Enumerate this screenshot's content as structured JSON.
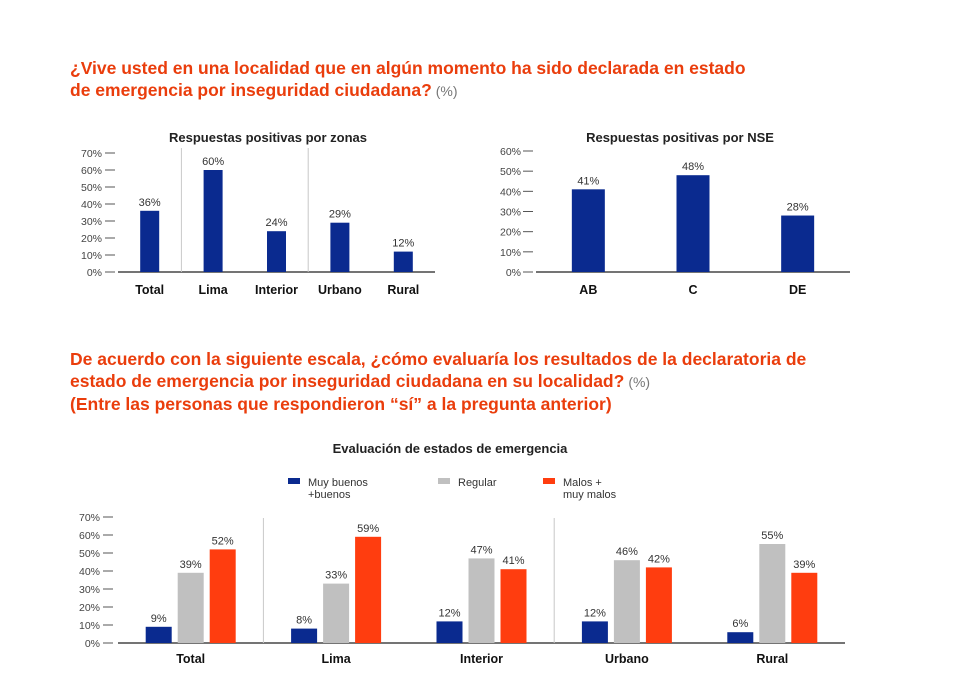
{
  "questions": {
    "q1": {
      "line1": "¿Vive usted en una localidad que en algún momento ha sido declarada en estado",
      "line2": "de emergencia por inseguridad ciudadana?",
      "pct": "(%)"
    },
    "q2": {
      "line1": "De acuerdo con la siguiente escala, ¿cómo evaluaría los resultados de la declaratoria de",
      "line2": "estado de emergencia por inseguridad ciudadana en su localidad?",
      "pct": "(%)",
      "line3": "(Entre las personas que respondieron “sí” a la pregunta anterior)"
    }
  },
  "colors": {
    "navy": "#0a2a8f",
    "gray": "#c0c0c0",
    "orange": "#ff3d0f",
    "accent_text": "#ea3d0c"
  },
  "chart_data": [
    {
      "id": "zonas",
      "type": "bar",
      "title": "Respuestas positivas por zonas",
      "categories": [
        "Total",
        "Lima",
        "Interior",
        "Urbano",
        "Rural"
      ],
      "series": [
        {
          "values": [
            36,
            60,
            24,
            29,
            12
          ],
          "color": "#0a2a8f"
        }
      ],
      "value_labels": [
        "36%",
        "60%",
        "24%",
        "29%",
        "12%"
      ],
      "ylim": [
        0,
        70
      ],
      "yticks": [
        "0%",
        "10%",
        "20%",
        "30%",
        "40%",
        "50%",
        "60%",
        "70%"
      ],
      "separators_after": [
        "Total",
        "Interior"
      ]
    },
    {
      "id": "nse",
      "type": "bar",
      "title": "Respuestas positivas por NSE",
      "categories": [
        "AB",
        "C",
        "DE"
      ],
      "series": [
        {
          "values": [
            41,
            48,
            28
          ],
          "color": "#0a2a8f"
        }
      ],
      "value_labels": [
        "41%",
        "48%",
        "28%"
      ],
      "ylim": [
        0,
        60
      ],
      "yticks": [
        "0%",
        "10%",
        "20%",
        "30%",
        "40%",
        "50%",
        "60%"
      ]
    },
    {
      "id": "evaluacion",
      "type": "bar",
      "title": "Evaluación de estados de emergencia",
      "categories": [
        "Total",
        "Lima",
        "Interior",
        "Urbano",
        "Rural"
      ],
      "series": [
        {
          "name_lines": [
            "Muy buenos",
            "+buenos"
          ],
          "values": [
            9,
            8,
            12,
            12,
            6
          ],
          "labels": [
            "9%",
            "8%",
            "12%",
            "12%",
            "6%"
          ],
          "color": "#0a2a8f"
        },
        {
          "name_lines": [
            "Regular"
          ],
          "values": [
            39,
            33,
            47,
            46,
            55
          ],
          "labels": [
            "39%",
            "33%",
            "47%",
            "46%",
            "55%"
          ],
          "color": "#c0c0c0"
        },
        {
          "name_lines": [
            "Malos +",
            "muy malos"
          ],
          "values": [
            52,
            59,
            41,
            42,
            39
          ],
          "labels": [
            "52%",
            "59%",
            "41%",
            "42%",
            "39%"
          ],
          "color": "#ff3d0f"
        }
      ],
      "ylim": [
        0,
        70
      ],
      "yticks": [
        "0%",
        "10%",
        "20%",
        "30%",
        "40%",
        "50%",
        "60%",
        "70%"
      ],
      "legend": "top",
      "separators_after": [
        "Total",
        "Interior"
      ]
    }
  ]
}
